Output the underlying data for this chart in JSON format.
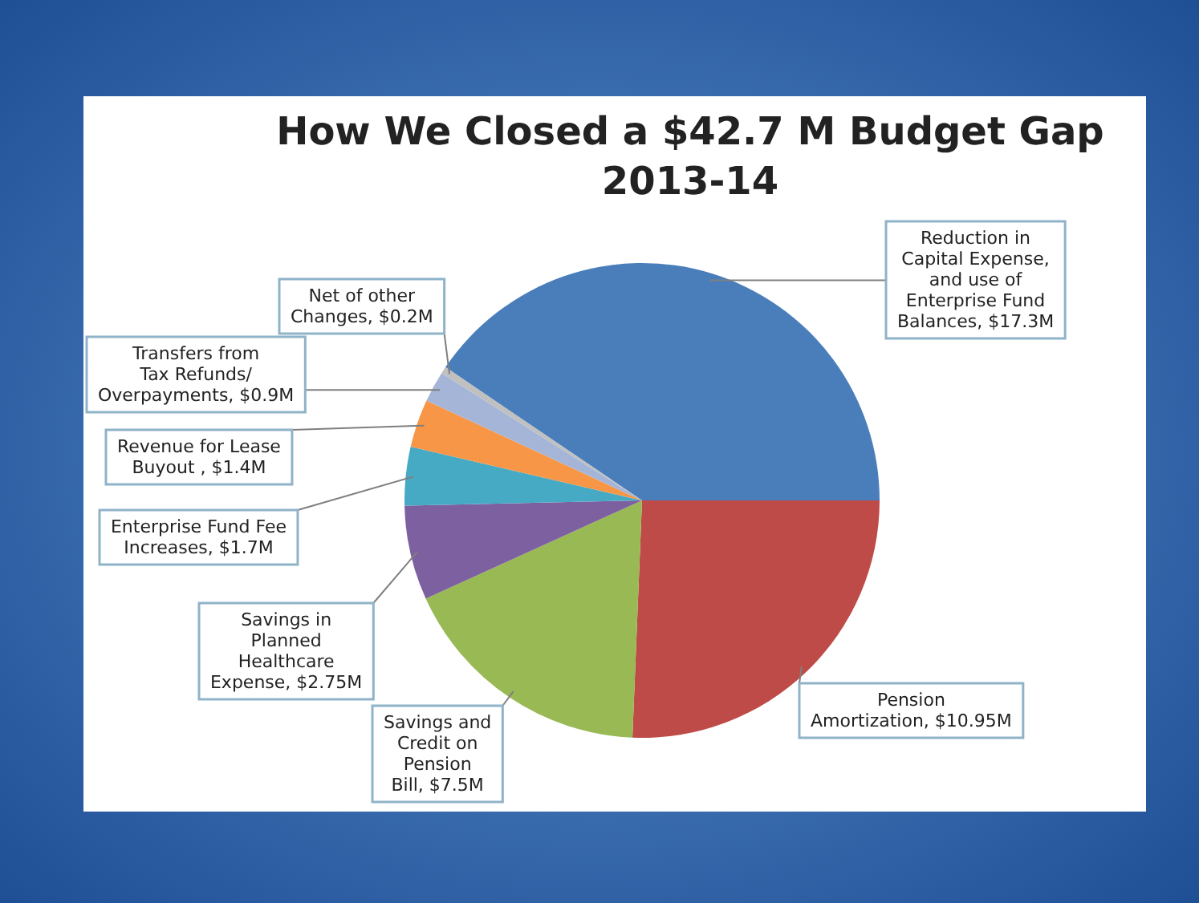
{
  "chart_data": {
    "type": "pie",
    "title": "How We Closed a $42.7 M Budget Gap",
    "subtitle": "2013-14",
    "categories": [
      "Reduction in Capital Expense, and use of Enterprise Fund Balances",
      "Pension Amortization",
      "Savings and Credit on Pension Bill",
      "Savings in Planned Healthcare Expense",
      "Enterprise Fund Fee Increases",
      "Revenue for Lease Buyout ",
      "Transfers from Tax Refunds/ Overpayments",
      "Net of other Changes"
    ],
    "values": [
      17.3,
      10.95,
      7.5,
      2.75,
      1.7,
      1.4,
      0.9,
      0.2
    ],
    "value_labels": [
      "$17.3M",
      "$10.95M",
      "$7.5M",
      "$2.75M",
      "$1.7M",
      "$1.4M",
      "$0.9M",
      "$0.2M"
    ],
    "colors": [
      "#4a7ebb",
      "#be4b48",
      "#98b954",
      "#7d60a0",
      "#46aac5",
      "#f79646",
      "#a5b5d8",
      "#c0c0c0"
    ],
    "legend": false
  }
}
